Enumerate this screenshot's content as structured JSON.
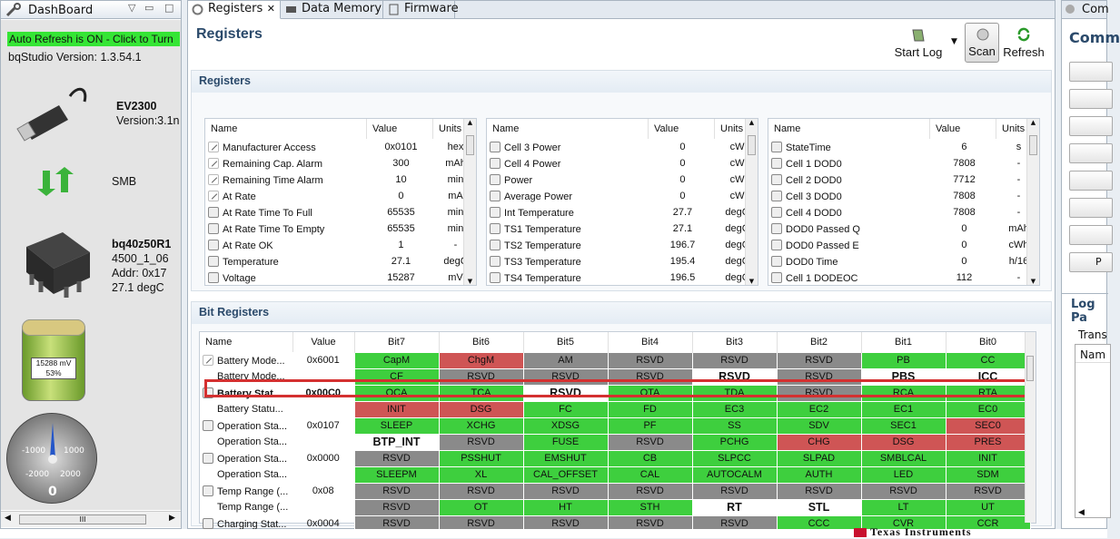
{
  "dashboard": {
    "title": "DashBoard",
    "auto_refresh": "Auto Refresh is ON - Click to Turn",
    "version": "bqStudio Version:  1.3.54.1",
    "ev_name": "EV2300",
    "ev_version": "Version:3.1n",
    "bus": "SMB",
    "device_name": "bq40z50R1",
    "device_fw": "4500_1_06",
    "device_addr": "Addr: 0x17",
    "device_temp": "27.1 degC",
    "battery_mv": "15288 mV",
    "battery_pct": "53%",
    "gauge_labels": [
      "-1000",
      "1000",
      "-2000",
      "2000"
    ],
    "gauge_value": "0",
    "scroll_label": "III"
  },
  "tabs": [
    "Registers",
    "Data Memory",
    "Firmware"
  ],
  "page_title": "Registers",
  "toolbar": {
    "start_log": "Start Log",
    "scan": "Scan",
    "refresh": "Refresh"
  },
  "registers": {
    "section": "Registers",
    "headers": [
      "Name",
      "Value",
      "Units"
    ],
    "tables": [
      [
        {
          "n": "Manufacturer Access",
          "v": "0x0101",
          "u": "hex",
          "i": "pen"
        },
        {
          "n": "Remaining Cap. Alarm",
          "v": "300",
          "u": "mAh",
          "i": "pen"
        },
        {
          "n": "Remaining Time Alarm",
          "v": "10",
          "u": "min",
          "i": "pen"
        },
        {
          "n": "At Rate",
          "v": "0",
          "u": "mA",
          "i": "pen"
        },
        {
          "n": "At Rate Time To Full",
          "v": "65535",
          "u": "min",
          "i": "lock"
        },
        {
          "n": "At Rate Time To Empty",
          "v": "65535",
          "u": "min",
          "i": "lock"
        },
        {
          "n": "At Rate OK",
          "v": "1",
          "u": "-",
          "i": "lock"
        },
        {
          "n": "Temperature",
          "v": "27.1",
          "u": "degC",
          "i": "lock"
        },
        {
          "n": "Voltage",
          "v": "15287",
          "u": "mV",
          "i": "lock"
        }
      ],
      [
        {
          "n": "Cell 3 Power",
          "v": "0",
          "u": "cW",
          "i": "lock"
        },
        {
          "n": "Cell 4 Power",
          "v": "0",
          "u": "cW",
          "i": "lock"
        },
        {
          "n": "Power",
          "v": "0",
          "u": "cW",
          "i": "lock"
        },
        {
          "n": "Average Power",
          "v": "0",
          "u": "cW",
          "i": "lock"
        },
        {
          "n": "Int Temperature",
          "v": "27.7",
          "u": "degC",
          "i": "lock"
        },
        {
          "n": "TS1 Temperature",
          "v": "27.1",
          "u": "degC",
          "i": "lock"
        },
        {
          "n": "TS2 Temperature",
          "v": "196.7",
          "u": "degC",
          "i": "lock"
        },
        {
          "n": "TS3 Temperature",
          "v": "195.4",
          "u": "degC",
          "i": "lock"
        },
        {
          "n": "TS4 Temperature",
          "v": "196.5",
          "u": "degC",
          "i": "lock"
        }
      ],
      [
        {
          "n": "StateTime",
          "v": "6",
          "u": "s",
          "i": "lock"
        },
        {
          "n": "Cell 1 DOD0",
          "v": "7808",
          "u": "-",
          "i": "lock"
        },
        {
          "n": "Cell 2 DOD0",
          "v": "7712",
          "u": "-",
          "i": "lock"
        },
        {
          "n": "Cell 3 DOD0",
          "v": "7808",
          "u": "-",
          "i": "lock"
        },
        {
          "n": "Cell 4 DOD0",
          "v": "7808",
          "u": "-",
          "i": "lock"
        },
        {
          "n": "DOD0 Passed Q",
          "v": "0",
          "u": "mAh",
          "i": "lock"
        },
        {
          "n": "DOD0 Passed E",
          "v": "0",
          "u": "cWh",
          "i": "lock"
        },
        {
          "n": "DOD0 Time",
          "v": "0",
          "u": "h/16",
          "i": "lock"
        },
        {
          "n": "Cell 1 DODEOC",
          "v": "112",
          "u": "-",
          "i": "lock"
        }
      ]
    ]
  },
  "bit_registers": {
    "section": "Bit Registers",
    "headers": [
      "Name",
      "Value",
      "Bit7",
      "Bit6",
      "Bit5",
      "Bit4",
      "Bit3",
      "Bit2",
      "Bit1",
      "Bit0"
    ],
    "rows": [
      {
        "n": "Battery Mode...",
        "v": "0x6001",
        "i": "pen",
        "b": [
          "CapM",
          "ChgM",
          "AM",
          "RSVD",
          "RSVD",
          "RSVD",
          "PB",
          "CC"
        ],
        "c": "grddddgg"
      },
      {
        "n": "Battery Mode...",
        "v": "",
        "i": "",
        "b": [
          "CF",
          "RSVD",
          "RSVD",
          "RSVD",
          "RSVD",
          "RSVD",
          "PBS",
          "ICC"
        ],
        "c": "gdddwdww"
      },
      {
        "n": "Battery Stat...",
        "v": "0x00C0",
        "i": "lock",
        "bold": true,
        "b": [
          "OCA",
          "TCA",
          "RSVD",
          "OTA",
          "TDA",
          "RSVD",
          "RCA",
          "RTA"
        ],
        "c": "ggwggdgg"
      },
      {
        "n": "Battery Statu...",
        "v": "",
        "i": "",
        "b": [
          "INIT",
          "DSG",
          "FC",
          "FD",
          "EC3",
          "EC2",
          "EC1",
          "EC0"
        ],
        "c": "rrgggggg"
      },
      {
        "n": "Operation Sta...",
        "v": "0x0107",
        "i": "lock",
        "b": [
          "SLEEP",
          "XCHG",
          "XDSG",
          "PF",
          "SS",
          "SDV",
          "SEC1",
          "SEC0"
        ],
        "c": "gggggggr"
      },
      {
        "n": "Operation Sta...",
        "v": "",
        "i": "",
        "b": [
          "BTP_INT",
          "RSVD",
          "FUSE",
          "RSVD",
          "PCHG",
          "CHG",
          "DSG",
          "PRES"
        ],
        "c": "wdgdgrrr"
      },
      {
        "n": "Operation Sta...",
        "v": "0x0000",
        "i": "lock",
        "b": [
          "RSVD",
          "PSSHUT",
          "EMSHUT",
          "CB",
          "SLPCC",
          "SLPAD",
          "SMBLCAL",
          "INIT"
        ],
        "c": "dggggggg"
      },
      {
        "n": "Operation Sta...",
        "v": "",
        "i": "",
        "b": [
          "SLEEPM",
          "XL",
          "CAL_OFFSET",
          "CAL",
          "AUTOCALM",
          "AUTH",
          "LED",
          "SDM"
        ],
        "c": "gggggggg"
      },
      {
        "n": "Temp Range (...",
        "v": "0x08",
        "i": "lock",
        "b": [
          "RSVD",
          "RSVD",
          "RSVD",
          "RSVD",
          "RSVD",
          "RSVD",
          "RSVD",
          "RSVD"
        ],
        "c": "dddddddd"
      },
      {
        "n": "Temp Range (...",
        "v": "",
        "i": "",
        "b": [
          "RSVD",
          "OT",
          "HT",
          "STH",
          "RT",
          "STL",
          "LT",
          "UT"
        ],
        "c": "dgggwwgg"
      },
      {
        "n": "Charging Stat...",
        "v": "0x0004",
        "i": "lock",
        "b": [
          "RSVD",
          "RSVD",
          "RSVD",
          "RSVD",
          "RSVD",
          "CCC",
          "CVR",
          "CCR"
        ],
        "c": "dddddggg"
      }
    ]
  },
  "right_panel": {
    "tab": "Com",
    "title": "Comm",
    "log_title": "Log Pa",
    "trans_label": "Trans",
    "name_header": "Nam",
    "btn_label": "P"
  },
  "bottom_logo": "Texas Instruments"
}
